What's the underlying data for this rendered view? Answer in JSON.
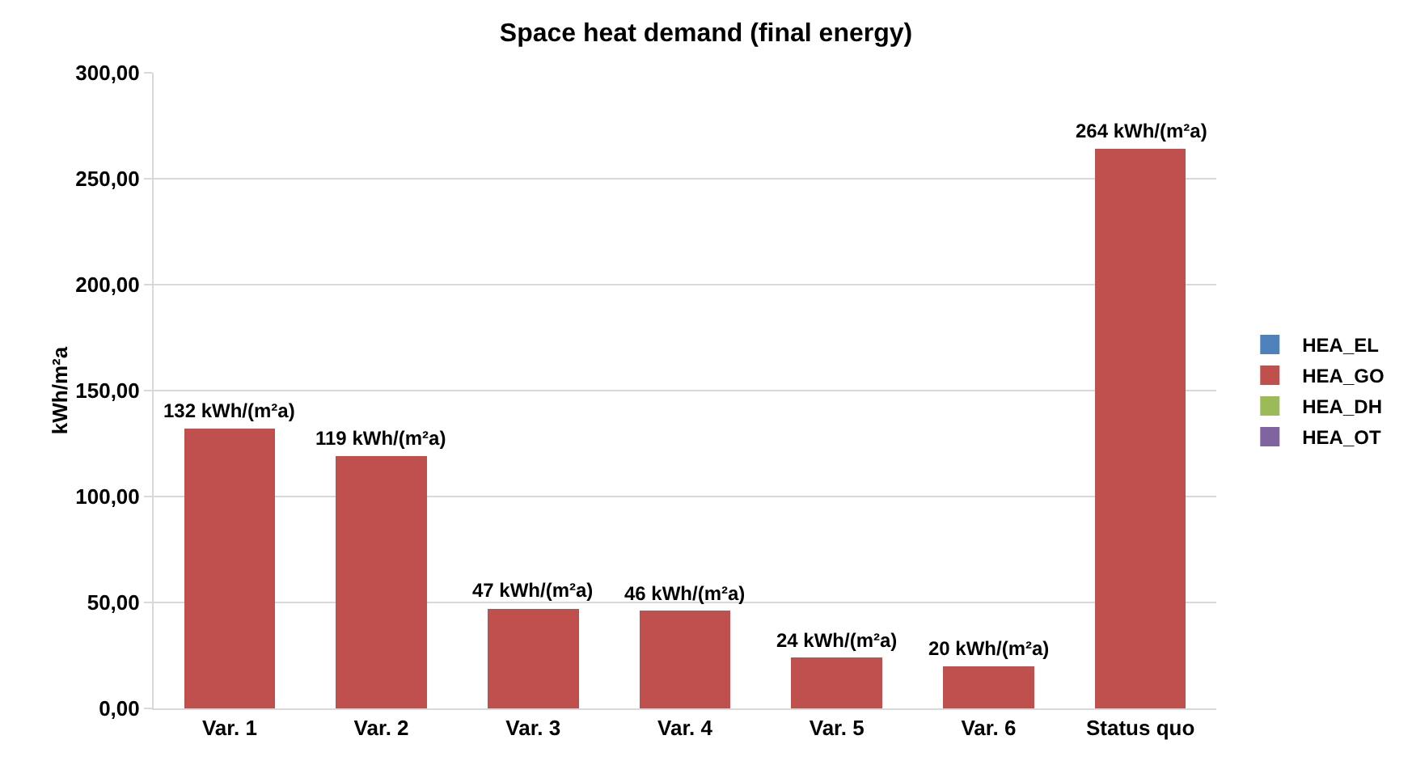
{
  "chart_data": {
    "type": "bar",
    "title": "Space heat demand (final energy)",
    "ylabel": "kWh/m²a",
    "categories": [
      "Var. 1",
      "Var. 2",
      "Var. 3",
      "Var. 4",
      "Var. 5",
      "Var. 6",
      "Status quo"
    ],
    "stacked": true,
    "series": [
      {
        "name": "HEA_EL",
        "color": "#4f81bd",
        "values": [
          0,
          0,
          0,
          0,
          0,
          0,
          0
        ]
      },
      {
        "name": "HEA_GO",
        "color": "#c0504d",
        "values": [
          132,
          119,
          47,
          46,
          24,
          20,
          264
        ]
      },
      {
        "name": "HEA_DH",
        "color": "#9bbb59",
        "values": [
          0,
          0,
          0,
          0,
          0,
          0,
          0
        ]
      },
      {
        "name": "HEA_OT",
        "color": "#8064a2",
        "values": [
          0,
          0,
          0,
          0,
          0,
          0,
          0
        ]
      }
    ],
    "totals": [
      "132 kWh/(m²a)",
      "119 kWh/(m²a)",
      "47 kWh/(m²a)",
      "46 kWh/(m²a)",
      "24 kWh/(m²a)",
      "20 kWh/(m²a)",
      "264 kWh/(m²a)"
    ],
    "ylim": [
      0,
      300
    ],
    "yticks": [
      {
        "value": 0,
        "label": "0,00"
      },
      {
        "value": 50,
        "label": "50,00"
      },
      {
        "value": 100,
        "label": "100,00"
      },
      {
        "value": 150,
        "label": "150,00"
      },
      {
        "value": 200,
        "label": "200,00"
      },
      {
        "value": 250,
        "label": "250,00"
      },
      {
        "value": 300,
        "label": "300,00"
      }
    ],
    "grid": "y",
    "legend": "right"
  }
}
